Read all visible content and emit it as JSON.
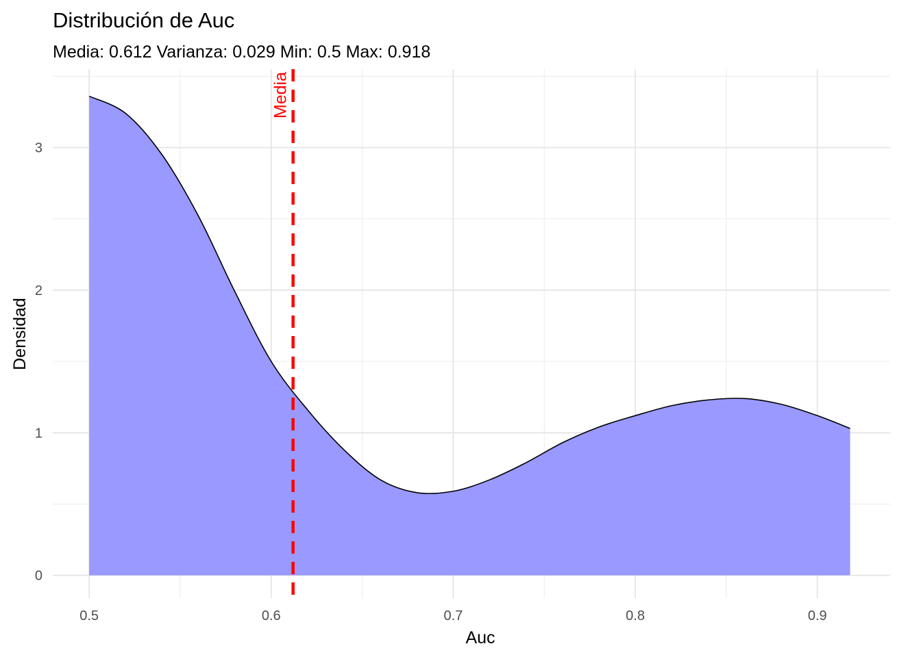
{
  "chart_data": {
    "type": "area",
    "title": "Distribución de Auc",
    "subtitle": "Media: 0.612 Varianza: 0.029 Min: 0.5 Max: 0.918",
    "xlabel": "Auc",
    "ylabel": "Densidad",
    "xlim": [
      0.48,
      0.94
    ],
    "ylim": [
      -0.16,
      3.55
    ],
    "x_ticks": [
      0.5,
      0.6,
      0.7,
      0.8,
      0.9
    ],
    "x_tick_labels": [
      "0.5",
      "0.6",
      "0.7",
      "0.8",
      "0.9"
    ],
    "y_ticks": [
      0,
      1,
      2,
      3
    ],
    "y_tick_labels": [
      "0",
      "1",
      "2",
      "3"
    ],
    "grid": true,
    "legend": "none",
    "fill_color": "#9999ff",
    "line_color": "#000000",
    "series": [
      {
        "x": [
          0.5,
          0.52,
          0.54,
          0.56,
          0.58,
          0.6,
          0.62,
          0.64,
          0.66,
          0.68,
          0.7,
          0.72,
          0.74,
          0.76,
          0.78,
          0.8,
          0.82,
          0.84,
          0.86,
          0.88,
          0.9,
          0.918
        ],
        "y": [
          3.36,
          3.24,
          2.95,
          2.52,
          1.99,
          1.5,
          1.16,
          0.88,
          0.67,
          0.58,
          0.59,
          0.67,
          0.79,
          0.93,
          1.04,
          1.12,
          1.19,
          1.23,
          1.24,
          1.2,
          1.12,
          1.03
        ]
      }
    ],
    "annotations": [
      {
        "type": "vline",
        "x": 0.612,
        "label": "Media",
        "color": "#ff0000",
        "style": "dashed"
      }
    ]
  }
}
